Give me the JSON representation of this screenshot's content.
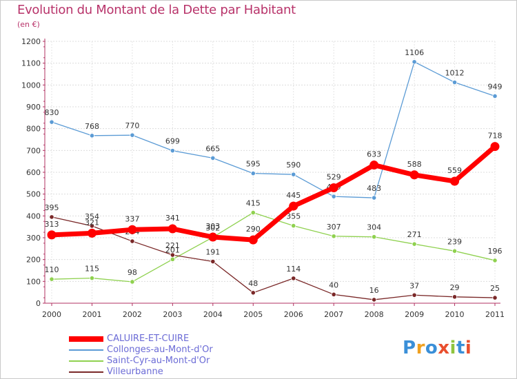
{
  "header": {
    "title": "Evolution du Montant de la Dette par Habitant",
    "unit": "(en €)"
  },
  "brand": {
    "text": "Proxiti"
  },
  "chart_data": {
    "type": "line",
    "title": "Evolution du Montant de la Dette par Habitant",
    "ylabel": "(en €)",
    "xlabel": "",
    "x": [
      "2000",
      "2001",
      "2002",
      "2003",
      "2004",
      "2005",
      "2006",
      "2007",
      "2008",
      "2009",
      "2010",
      "2011"
    ],
    "ylim": [
      0,
      1200
    ],
    "yticks": [
      0,
      100,
      200,
      300,
      400,
      500,
      600,
      700,
      800,
      900,
      1000,
      1100,
      1200
    ],
    "grid": true,
    "legend_position": "bottom-left",
    "series": [
      {
        "name": "Collonges-au-Mont-d'Or",
        "color": "#5b9bd5",
        "values": [
          830,
          768,
          770,
          699,
          665,
          595,
          590,
          489,
          483,
          1106,
          1012,
          949
        ]
      },
      {
        "name": "Saint-Cyr-au-Mont-d'Or",
        "color": "#8fd14f",
        "values": [
          110,
          115,
          98,
          201,
          302,
          415,
          355,
          307,
          304,
          271,
          239,
          196
        ]
      },
      {
        "name": "Villeurbanne",
        "color": "#7a2828",
        "values": [
          395,
          354,
          284,
          221,
          191,
          48,
          114,
          40,
          16,
          37,
          29,
          25
        ]
      },
      {
        "name": "CALUIRE-ET-CUIRE",
        "color": "#ff0000",
        "values": [
          313,
          321,
          337,
          341,
          303,
          290,
          445,
          529,
          633,
          588,
          559,
          718
        ]
      }
    ]
  }
}
